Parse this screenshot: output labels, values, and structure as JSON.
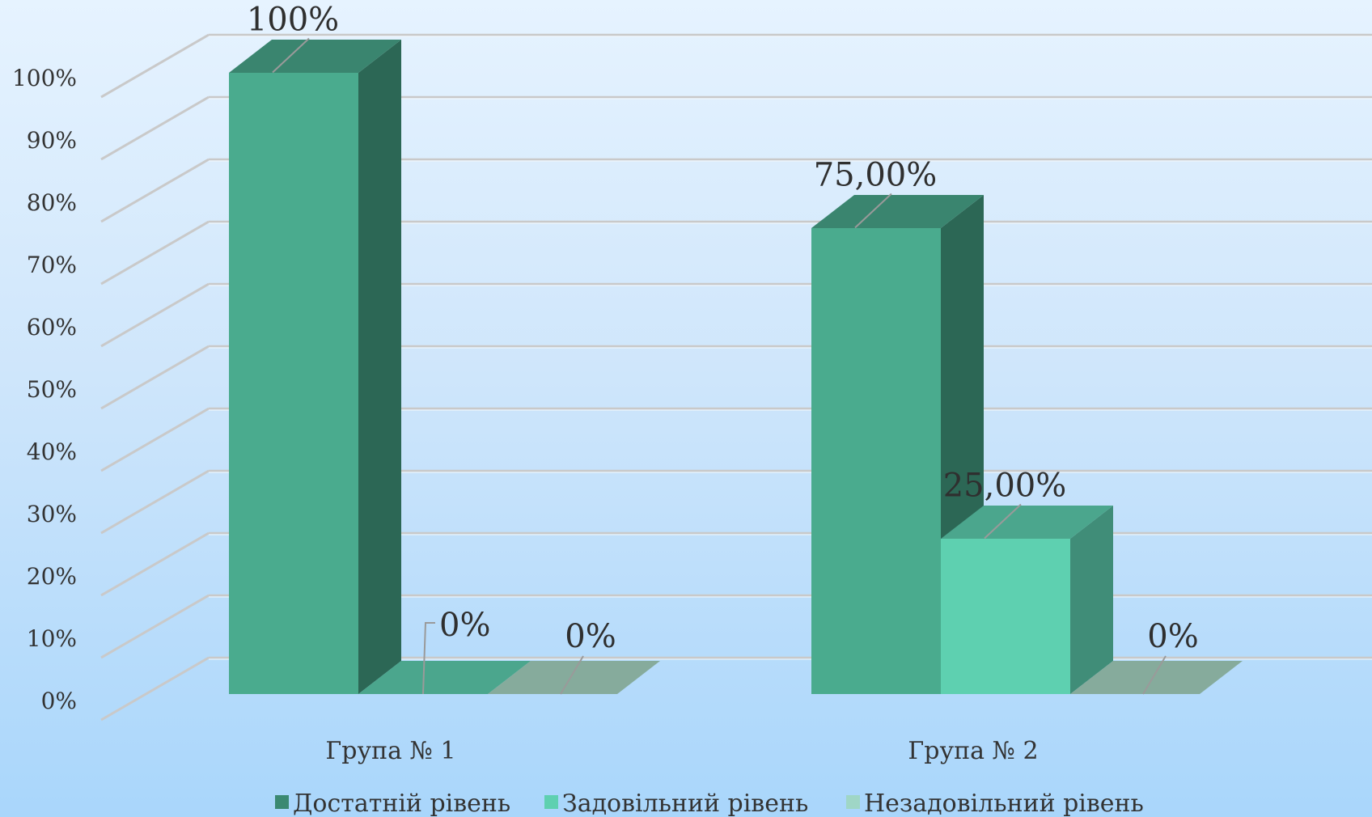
{
  "chart_data": {
    "type": "bar",
    "categories": [
      "Група № 1",
      "Група № 2"
    ],
    "series": [
      {
        "name": "Достатній рівень",
        "values": [
          100,
          75
        ],
        "labels": [
          "100%",
          "75,00%"
        ],
        "color": "#4aab8e"
      },
      {
        "name": "Задовільний рівень",
        "values": [
          0,
          25
        ],
        "labels": [
          "0%",
          "25,00%"
        ],
        "color": "#5ed0b0"
      },
      {
        "name": "Незадовільний рівень",
        "values": [
          0,
          0
        ],
        "labels": [
          "0%",
          "0%"
        ],
        "color": "#9fd6c6"
      }
    ],
    "ylim": [
      0,
      100
    ],
    "yticks": [
      "0%",
      "10%",
      "20%",
      "30%",
      "40%",
      "50%",
      "60%",
      "70%",
      "80%",
      "90%",
      "100%"
    ],
    "grid": true,
    "legend": "bottom"
  }
}
